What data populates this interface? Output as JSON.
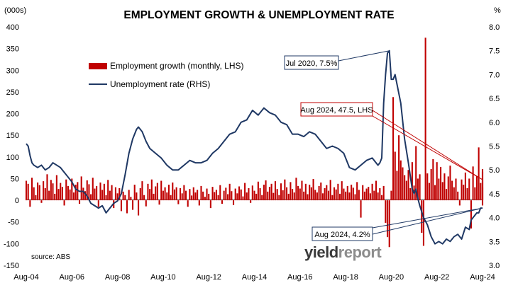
{
  "chart_data": {
    "type": "bar+line",
    "title": "EMPLOYMENT GROWTH & UNEMPLOYMENT RATE",
    "left_axis": {
      "unit_label": "(000s)",
      "ylim": [
        -150,
        400
      ],
      "ticks": [
        "400",
        "350",
        "300",
        "250",
        "200",
        "150",
        "100",
        "50",
        "0",
        "-50",
        "-100",
        "-150"
      ]
    },
    "right_axis": {
      "unit_label": "%",
      "ylim": [
        3.0,
        8.0
      ],
      "ticks": [
        "8.0",
        "7.5",
        "7.0",
        "6.5",
        "6.0",
        "5.5",
        "5.0",
        "4.5",
        "4.0",
        "3.5",
        "3.0"
      ]
    },
    "x_axis": {
      "range": [
        "2004-08",
        "2024-08"
      ],
      "tick_labels": [
        "Aug-04",
        "Aug-06",
        "Aug-08",
        "Aug-10",
        "Aug-12",
        "Aug-14",
        "Aug-16",
        "Aug-18",
        "Aug-20",
        "Aug-22",
        "Aug-24"
      ]
    },
    "legend": {
      "placement": "top-left",
      "items": [
        {
          "label": "Employment growth (monthly, LHS)",
          "color": "#c00000",
          "kind": "bar"
        },
        {
          "label": "Unemployment rate (RHS)",
          "color": "#1f3864",
          "kind": "line"
        }
      ]
    },
    "annotations": [
      {
        "text": "Jul 2020, 7.5%",
        "color": "#1f3864",
        "points_to": {
          "date": "2020-07",
          "axis": "right",
          "value": 7.5
        }
      },
      {
        "text": "Aug 2024, 47.5, LHS",
        "color": "#c00000",
        "points_to": {
          "date": "2024-08",
          "axis": "left",
          "value": 47.5
        }
      },
      {
        "text": "Aug 2024, 4.2%",
        "color": "#1f3864",
        "points_to": {
          "date": "2024-08",
          "axis": "right",
          "value": 4.2
        }
      }
    ],
    "source": "source: ABS",
    "watermark": {
      "part1": "yield",
      "part2": "report"
    },
    "series": [
      {
        "name": "Unemployment rate (RHS)",
        "axis": "right",
        "color": "#1f3864",
        "points": [
          [
            "2004-08",
            5.55
          ],
          [
            "2004-09",
            5.5
          ],
          [
            "2004-10",
            5.3
          ],
          [
            "2004-11",
            5.15
          ],
          [
            "2004-12",
            5.1
          ],
          [
            "2005-02",
            5.05
          ],
          [
            "2005-04",
            5.1
          ],
          [
            "2005-06",
            5.0
          ],
          [
            "2005-08",
            5.05
          ],
          [
            "2005-10",
            5.15
          ],
          [
            "2005-12",
            5.1
          ],
          [
            "2006-02",
            5.05
          ],
          [
            "2006-04",
            4.95
          ],
          [
            "2006-06",
            4.85
          ],
          [
            "2006-08",
            4.75
          ],
          [
            "2006-10",
            4.6
          ],
          [
            "2006-12",
            4.55
          ],
          [
            "2007-02",
            4.55
          ],
          [
            "2007-04",
            4.45
          ],
          [
            "2007-06",
            4.3
          ],
          [
            "2007-08",
            4.25
          ],
          [
            "2007-10",
            4.2
          ],
          [
            "2007-12",
            4.25
          ],
          [
            "2008-02",
            4.1
          ],
          [
            "2008-04",
            4.2
          ],
          [
            "2008-06",
            4.3
          ],
          [
            "2008-08",
            4.35
          ],
          [
            "2008-10",
            4.5
          ],
          [
            "2008-12",
            4.9
          ],
          [
            "2009-02",
            5.35
          ],
          [
            "2009-04",
            5.65
          ],
          [
            "2009-06",
            5.85
          ],
          [
            "2009-07",
            5.9
          ],
          [
            "2009-09",
            5.8
          ],
          [
            "2009-11",
            5.6
          ],
          [
            "2010-01",
            5.45
          ],
          [
            "2010-04",
            5.35
          ],
          [
            "2010-07",
            5.25
          ],
          [
            "2010-10",
            5.1
          ],
          [
            "2011-01",
            5.0
          ],
          [
            "2011-04",
            5.0
          ],
          [
            "2011-07",
            5.1
          ],
          [
            "2011-10",
            5.2
          ],
          [
            "2012-01",
            5.15
          ],
          [
            "2012-04",
            5.15
          ],
          [
            "2012-07",
            5.2
          ],
          [
            "2012-10",
            5.35
          ],
          [
            "2013-01",
            5.45
          ],
          [
            "2013-04",
            5.6
          ],
          [
            "2013-07",
            5.75
          ],
          [
            "2013-10",
            5.8
          ],
          [
            "2014-01",
            6.0
          ],
          [
            "2014-04",
            6.05
          ],
          [
            "2014-07",
            6.25
          ],
          [
            "2014-10",
            6.15
          ],
          [
            "2015-01",
            6.3
          ],
          [
            "2015-04",
            6.2
          ],
          [
            "2015-07",
            6.15
          ],
          [
            "2015-10",
            6.0
          ],
          [
            "2016-01",
            5.95
          ],
          [
            "2016-04",
            5.75
          ],
          [
            "2016-07",
            5.75
          ],
          [
            "2016-10",
            5.7
          ],
          [
            "2017-01",
            5.8
          ],
          [
            "2017-04",
            5.75
          ],
          [
            "2017-07",
            5.6
          ],
          [
            "2017-10",
            5.45
          ],
          [
            "2018-01",
            5.5
          ],
          [
            "2018-04",
            5.45
          ],
          [
            "2018-07",
            5.35
          ],
          [
            "2018-10",
            5.05
          ],
          [
            "2019-01",
            5.0
          ],
          [
            "2019-04",
            5.1
          ],
          [
            "2019-07",
            5.2
          ],
          [
            "2019-10",
            5.25
          ],
          [
            "2020-01",
            5.1
          ],
          [
            "2020-02",
            5.15
          ],
          [
            "2020-03",
            5.25
          ],
          [
            "2020-04",
            6.4
          ],
          [
            "2020-05",
            7.0
          ],
          [
            "2020-06",
            7.45
          ],
          [
            "2020-07",
            7.5
          ],
          [
            "2020-08",
            6.9
          ],
          [
            "2020-09",
            6.9
          ],
          [
            "2020-10",
            7.0
          ],
          [
            "2020-11",
            6.8
          ],
          [
            "2021-01",
            6.4
          ],
          [
            "2021-03",
            5.65
          ],
          [
            "2021-05",
            5.15
          ],
          [
            "2021-07",
            4.6
          ],
          [
            "2021-08",
            4.5
          ],
          [
            "2021-09",
            4.6
          ],
          [
            "2021-10",
            4.4
          ],
          [
            "2021-11",
            4.25
          ],
          [
            "2022-01",
            4.0
          ],
          [
            "2022-03",
            3.85
          ],
          [
            "2022-05",
            3.6
          ],
          [
            "2022-07",
            3.45
          ],
          [
            "2022-09",
            3.5
          ],
          [
            "2022-11",
            3.45
          ],
          [
            "2023-01",
            3.55
          ],
          [
            "2023-03",
            3.5
          ],
          [
            "2023-05",
            3.6
          ],
          [
            "2023-07",
            3.65
          ],
          [
            "2023-09",
            3.55
          ],
          [
            "2023-11",
            3.8
          ],
          [
            "2024-01",
            3.75
          ],
          [
            "2024-02",
            3.95
          ],
          [
            "2024-03",
            4.0
          ],
          [
            "2024-04",
            4.05
          ],
          [
            "2024-05",
            4.1
          ],
          [
            "2024-06",
            4.1
          ],
          [
            "2024-07",
            4.2
          ],
          [
            "2024-08",
            4.2
          ]
        ]
      },
      {
        "name": "Employment growth (monthly, LHS)",
        "axis": "left",
        "color": "#c00000",
        "start": "2004-08",
        "step": "month",
        "values": [
          45,
          38,
          -15,
          52,
          30,
          12,
          41,
          35,
          -6,
          44,
          28,
          60,
          22,
          47,
          39,
          15,
          58,
          26,
          40,
          31,
          -12,
          48,
          33,
          25,
          50,
          18,
          36,
          42,
          -8,
          55,
          29,
          21,
          46,
          37,
          14,
          52,
          27,
          33,
          -15,
          41,
          24,
          38,
          12,
          47,
          22,
          35,
          -18,
          30,
          16,
          28,
          -25,
          20,
          12,
          -30,
          24,
          8,
          -22,
          36,
          18,
          -35,
          28,
          44,
          12,
          -14,
          38,
          26,
          48,
          15,
          32,
          40,
          -10,
          45,
          22,
          30,
          18,
          36,
          12,
          41,
          25,
          30,
          -9,
          28,
          16,
          35,
          22,
          -15,
          26,
          11,
          30,
          18,
          24,
          -12,
          33,
          20,
          8,
          27,
          15,
          -18,
          31,
          19,
          24,
          12,
          35,
          -8,
          22,
          29,
          14,
          38,
          21,
          -11,
          27,
          16,
          32,
          25,
          9,
          40,
          18,
          28,
          -6,
          34,
          22,
          15,
          43,
          28,
          12,
          36,
          46,
          20,
          31,
          38,
          17,
          44,
          26,
          12,
          39,
          23,
          48,
          30,
          15,
          42,
          26,
          18,
          52,
          33,
          27,
          45,
          20,
          38,
          14,
          36,
          30,
          49,
          24,
          18,
          33,
          41,
          16,
          28,
          35,
          22,
          47,
          12,
          30,
          25,
          38,
          15,
          44,
          27,
          20,
          33,
          18,
          36,
          29,
          14,
          42,
          24,
          -40,
          35,
          20,
          27,
          31,
          16,
          38,
          22,
          45,
          18,
          28,
          12,
          33,
          -52,
          -85,
          -108,
          22,
          238,
          112,
          68,
          150,
          92,
          76,
          58,
          45,
          70,
          28,
          88,
          34,
          125,
          50,
          60,
          -75,
          -105,
          375,
          62,
          40,
          72,
          95,
          35,
          88,
          50,
          77,
          42,
          62,
          26,
          55,
          80,
          45,
          30,
          50,
          20,
          -12,
          48,
          36,
          64,
          28,
          50,
          -65,
          78,
          30,
          55,
          122,
          40,
          -12,
          72,
          30,
          66,
          47.5
        ]
      }
    ]
  }
}
